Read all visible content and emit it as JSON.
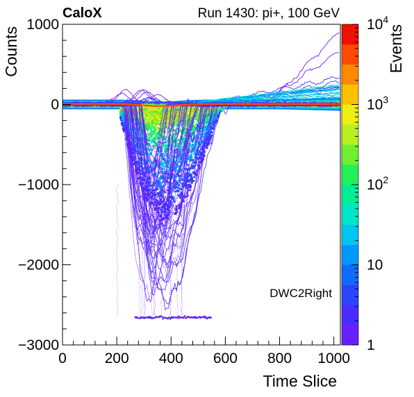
{
  "header": {
    "experiment": "CaloX",
    "run_info": "Run 1430: pi+, 100 GeV"
  },
  "chart_data": {
    "type": "heatmap",
    "title": "",
    "xlabel": "Time Slice",
    "ylabel": "Counts",
    "zlabel": "Events",
    "annotation": "DWC2Right",
    "xlim": [
      0,
      1024
    ],
    "ylim": [
      -3000,
      1000
    ],
    "zlim": [
      1,
      10000
    ],
    "zscale": "log",
    "x_ticks": [
      0,
      200,
      400,
      600,
      800,
      1000
    ],
    "x_tick_labels": [
      "0",
      "200",
      "400",
      "600",
      "800",
      "1000"
    ],
    "y_ticks": [
      1000,
      0,
      -1000,
      -2000,
      -3000
    ],
    "y_tick_labels": [
      "1000",
      "0",
      "−1000",
      "−2000",
      "−3000"
    ],
    "z_tick_labels": [
      {
        "value": 1,
        "label": "1"
      },
      {
        "value": 10,
        "label": "10"
      },
      {
        "value": 100,
        "base": "10",
        "exp": "2"
      },
      {
        "value": 1000,
        "base": "10",
        "exp": "3"
      },
      {
        "value": 10000,
        "base": "10",
        "exp": "4"
      }
    ],
    "pedestal_band": {
      "y_center": 0,
      "y_halfwidth": 60
    },
    "pulse_region": {
      "x_start": 200,
      "x_peak": 330,
      "x_end": 620,
      "y_min": -2650
    },
    "saturation_level": -2650
  },
  "colors": {
    "palette": [
      "#6a1fff",
      "#4b2cff",
      "#2a45ff",
      "#0f6bff",
      "#0098ff",
      "#00c6f0",
      "#00e6c8",
      "#00ee96",
      "#22f05a",
      "#70f030",
      "#b8f020",
      "#eeee10",
      "#ffc000",
      "#ff8a00",
      "#ff4a00",
      "#ee1000"
    ]
  }
}
